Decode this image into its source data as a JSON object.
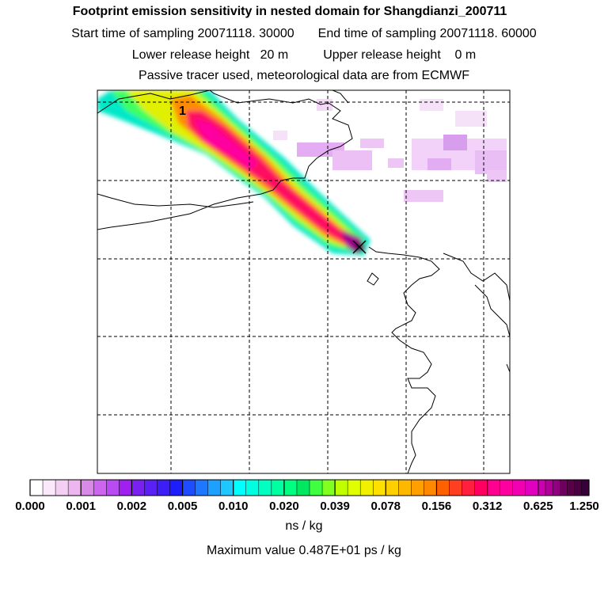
{
  "title": {
    "line1": "Footprint emission sensitivity in nested domain for Shangdianzi_200711",
    "start_label": "Start time of sampling 20071118. 30000",
    "end_label": "End time of sampling 20071118. 60000",
    "lower_label": "Lower release height   20 m",
    "upper_label": "Upper release height    0 m",
    "line4": "Passive tracer used, meteorological data are from ECMWF"
  },
  "map": {
    "release_label": "1",
    "receptor_marker": "x-marker"
  },
  "colorbar": {
    "tick_labels": [
      "0.000",
      "0.001",
      "0.002",
      "0.005",
      "0.010",
      "0.020",
      "0.039",
      "0.078",
      "0.156",
      "0.312",
      "0.625",
      "1.250"
    ],
    "colors": [
      "#ffffff",
      "#fbe8fb",
      "#f4cff4",
      "#edb6ee",
      "#d98ae6",
      "#cc66ee",
      "#b84cf2",
      "#a020f0",
      "#7a20f0",
      "#5a20f5",
      "#3d1ef7",
      "#1e1efa",
      "#1e4cff",
      "#1e78ff",
      "#1ea0ff",
      "#1ec8ff",
      "#00ffff",
      "#00ffe0",
      "#00ffc0",
      "#00ffa0",
      "#00ff80",
      "#00e860",
      "#40ff40",
      "#80ff20",
      "#c0ff00",
      "#e0ff00",
      "#f0f000",
      "#ffe000",
      "#ffd000",
      "#ffb800",
      "#ffa000",
      "#ff8800",
      "#ff6000",
      "#ff4020",
      "#ff2040",
      "#ff0060",
      "#ff0090",
      "#ff00a0",
      "#f000b0",
      "#e000c0",
      "#cc00b0",
      "#b00098",
      "#900080",
      "#700060",
      "#580048",
      "#480040",
      "#380038"
    ],
    "units": "ns / kg",
    "max_value": "Maximum value  0.487E+01 ps / kg"
  }
}
